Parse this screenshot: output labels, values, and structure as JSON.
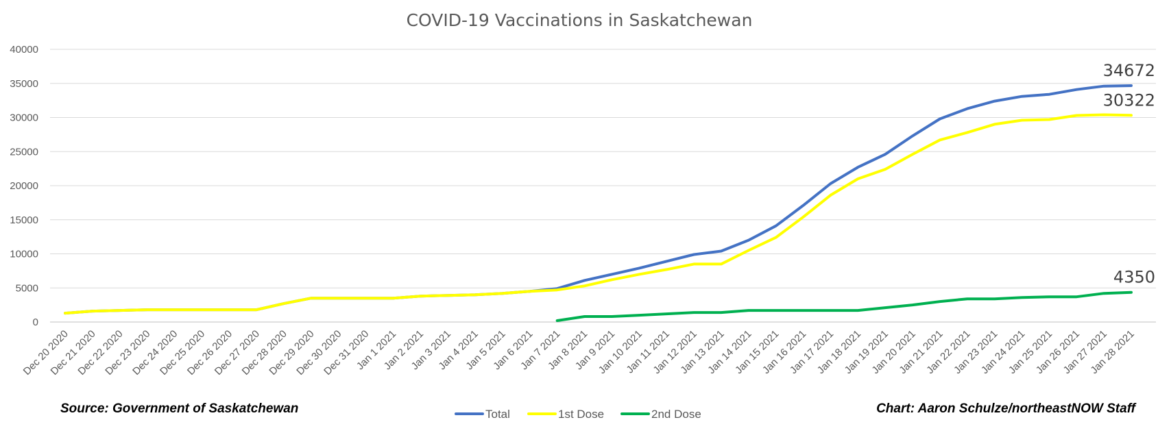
{
  "chart_data": {
    "type": "line",
    "title": "COVID-19 Vaccinations in Saskatchewan",
    "xlabel": "",
    "ylabel": "",
    "ylim": [
      0,
      40000
    ],
    "yticks": [
      0,
      5000,
      10000,
      15000,
      20000,
      25000,
      30000,
      35000,
      40000
    ],
    "ytick_labels": [
      "0",
      "5000",
      "10000",
      "15000",
      "20000",
      "25000",
      "30000",
      "35000",
      "40000"
    ],
    "grid": "horizontal",
    "legend_position": "bottom",
    "categories": [
      "Dec 20 2020",
      "Dec 21 2020",
      "Dec 22 2020",
      "Dec 23 2020",
      "Dec 24 2020",
      "Dec 25 2020",
      "Dec 26 2020",
      "Dec 27 2020",
      "Dec 28 2020",
      "Dec 29 2020",
      "Dec 30 2020",
      "Dec 31 2020",
      "Jan 1 2021",
      "Jan 2 2021",
      "Jan 3 2021",
      "Jan 4 2021",
      "Jan 5 2021",
      "Jan 6 2021",
      "Jan 7 2021",
      "Jan 8 2021",
      "Jan 9 2021",
      "Jan 10 2021",
      "Jan 11 2021",
      "Jan 12 2021",
      "Jan 13 2021",
      "Jan 14 2021",
      "Jan 15 2021",
      "Jan 16 2021",
      "Jan 17 2021",
      "Jan 18 2021",
      "Jan 19 2021",
      "Jan 20 2021",
      "Jan 21 2021",
      "Jan 22 2021",
      "Jan 23 2021",
      "Jan 24 2021",
      "Jan 25 2021",
      "Jan 26 2021",
      "Jan 27 2021",
      "Jan 28 2021"
    ],
    "series": [
      {
        "name": "Total",
        "color": "#4472C4",
        "values": [
          1300,
          1600,
          1700,
          1800,
          1800,
          1800,
          1800,
          1800,
          2700,
          3500,
          3500,
          3500,
          3500,
          3800,
          3900,
          4000,
          4200,
          4500,
          4900,
          6100,
          7000,
          7900,
          8900,
          9900,
          10400,
          12000,
          14100,
          17100,
          20300,
          22700,
          24600,
          27300,
          29800,
          31300,
          32400,
          33100,
          33400,
          34100,
          34600,
          34672
        ],
        "end_label": "34672"
      },
      {
        "name": "1st Dose",
        "color": "#FFFF00",
        "values": [
          1300,
          1600,
          1700,
          1800,
          1800,
          1800,
          1800,
          1800,
          2700,
          3500,
          3500,
          3500,
          3500,
          3800,
          3900,
          4000,
          4200,
          4500,
          4700,
          5300,
          6200,
          7000,
          7700,
          8500,
          8500,
          10500,
          12400,
          15400,
          18600,
          21000,
          22400,
          24600,
          26700,
          27800,
          29000,
          29600,
          29700,
          30300,
          30400,
          30322
        ],
        "end_label": "30322"
      },
      {
        "name": "2nd Dose",
        "color": "#00B050",
        "values": [
          null,
          null,
          null,
          null,
          null,
          null,
          null,
          null,
          null,
          null,
          null,
          null,
          null,
          null,
          null,
          null,
          null,
          null,
          200,
          800,
          800,
          1000,
          1200,
          1400,
          1400,
          1700,
          1700,
          1700,
          1700,
          1700,
          2100,
          2500,
          3000,
          3400,
          3400,
          3600,
          3700,
          3700,
          4200,
          4350
        ],
        "end_label": "4350"
      }
    ]
  },
  "footer": {
    "source": "Source: Government of Saskatchewan",
    "credit": "Chart: Aaron Schulze/northeastNOW Staff"
  }
}
